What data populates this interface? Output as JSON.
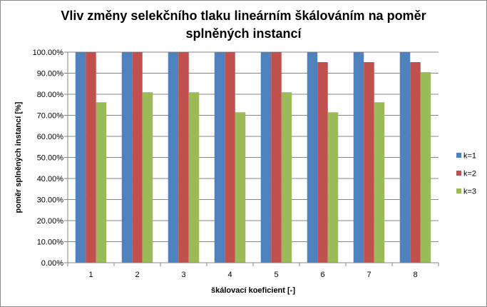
{
  "chart_data": {
    "type": "bar",
    "title_line1": "Vliv změny selekčního tlaku lineárním škálováním na poměr",
    "title_line2": "splněných instancí",
    "xlabel": "škálovací  koeficient  [-]",
    "ylabel": "poměr splněných instancí [%]",
    "categories": [
      "1",
      "2",
      "3",
      "4",
      "5",
      "6",
      "7",
      "8"
    ],
    "ylim": [
      0,
      100
    ],
    "yticks": [
      {
        "value": 0,
        "label": "0.00%"
      },
      {
        "value": 10,
        "label": "10.00%"
      },
      {
        "value": 20,
        "label": "20.00%"
      },
      {
        "value": 30,
        "label": "30.00%"
      },
      {
        "value": 40,
        "label": "40.00%"
      },
      {
        "value": 50,
        "label": "50.00%"
      },
      {
        "value": 60,
        "label": "60.00%"
      },
      {
        "value": 70,
        "label": "70.00%"
      },
      {
        "value": 80,
        "label": "80.00%"
      },
      {
        "value": 90,
        "label": "90.00%"
      },
      {
        "value": 100,
        "label": "100.00%"
      }
    ],
    "series": [
      {
        "name": "k=1",
        "color": "#4f81bd",
        "values": [
          100,
          100,
          100,
          100,
          100,
          100,
          100,
          100
        ]
      },
      {
        "name": "k=2",
        "color": "#c0504d",
        "values": [
          100,
          100,
          100,
          100,
          100,
          95.24,
          95.24,
          95.24
        ]
      },
      {
        "name": "k=3",
        "color": "#9bbb59",
        "values": [
          76.19,
          80.95,
          80.95,
          71.43,
          80.95,
          71.43,
          76.19,
          90.48
        ]
      }
    ],
    "grid": true,
    "legend_position": "right"
  }
}
